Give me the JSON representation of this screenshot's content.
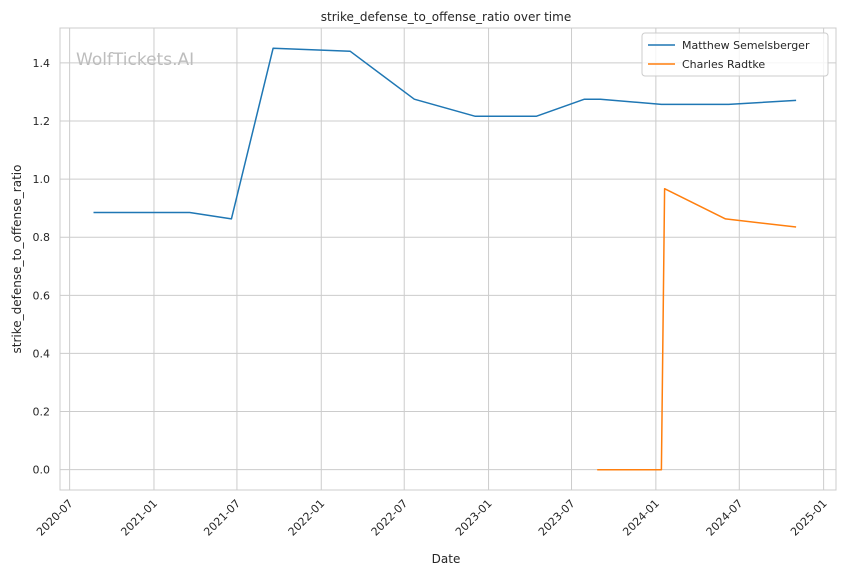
{
  "chart_data": {
    "type": "line",
    "title": "strike_defense_to_offense_ratio over time",
    "xlabel": "Date",
    "ylabel": "strike_defense_to_offense_ratio",
    "watermark": "WolfTickets.AI",
    "xlim": [
      "2020-06-10",
      "2025-01-28"
    ],
    "ylim": [
      -0.07,
      1.52
    ],
    "x_ticks": [
      "2020-07",
      "2021-01",
      "2021-07",
      "2022-01",
      "2022-07",
      "2023-01",
      "2023-07",
      "2024-01",
      "2024-07",
      "2025-01"
    ],
    "y_ticks": [
      "0.0",
      "0.2",
      "0.4",
      "0.6",
      "0.8",
      "1.0",
      "1.2",
      "1.4"
    ],
    "grid": true,
    "legend_position": "top-right",
    "series": [
      {
        "name": "Matthew Semelsberger",
        "color": "#1f77b4",
        "x": [
          "2020-08-22",
          "2021-03-20",
          "2021-06-19",
          "2021-09-18",
          "2022-03-05",
          "2022-07-23",
          "2022-12-03",
          "2023-04-15",
          "2023-07-29",
          "2023-09-02",
          "2024-01-13",
          "2024-06-08",
          "2024-11-02"
        ],
        "values": [
          0.885,
          0.885,
          0.863,
          1.45,
          1.44,
          1.275,
          1.216,
          1.216,
          1.275,
          1.275,
          1.257,
          1.257,
          1.271
        ]
      },
      {
        "name": "Charles Radtke",
        "color": "#ff7f0e",
        "x": [
          "2023-08-26",
          "2024-01-13",
          "2024-01-20",
          "2024-06-01",
          "2024-11-02"
        ],
        "values": [
          0.0,
          0.0,
          0.967,
          0.863,
          0.835
        ]
      }
    ]
  }
}
